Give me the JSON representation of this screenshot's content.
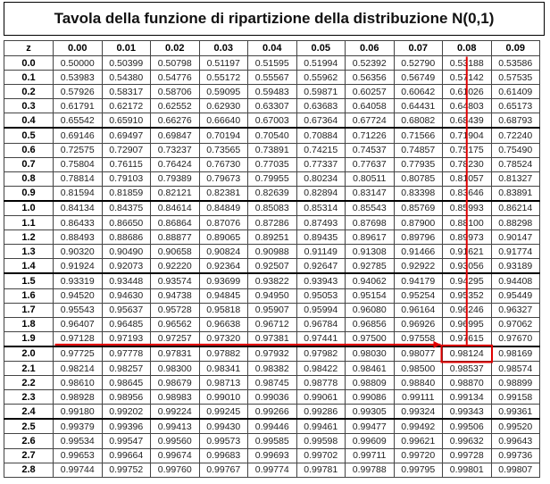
{
  "title": "Tavola della funzione di ripartizione della distribuzione N(0,1)",
  "z_header": "z",
  "columns": [
    "0.00",
    "0.01",
    "0.02",
    "0.03",
    "0.04",
    "0.05",
    "0.06",
    "0.07",
    "0.08",
    "0.09"
  ],
  "rows": [
    {
      "z": "0.0",
      "v": [
        "0.50000",
        "0.50399",
        "0.50798",
        "0.51197",
        "0.51595",
        "0.51994",
        "0.52392",
        "0.52790",
        "0.53188",
        "0.53586"
      ]
    },
    {
      "z": "0.1",
      "v": [
        "0.53983",
        "0.54380",
        "0.54776",
        "0.55172",
        "0.55567",
        "0.55962",
        "0.56356",
        "0.56749",
        "0.57142",
        "0.57535"
      ]
    },
    {
      "z": "0.2",
      "v": [
        "0.57926",
        "0.58317",
        "0.58706",
        "0.59095",
        "0.59483",
        "0.59871",
        "0.60257",
        "0.60642",
        "0.61026",
        "0.61409"
      ]
    },
    {
      "z": "0.3",
      "v": [
        "0.61791",
        "0.62172",
        "0.62552",
        "0.62930",
        "0.63307",
        "0.63683",
        "0.64058",
        "0.64431",
        "0.64803",
        "0.65173"
      ]
    },
    {
      "z": "0.4",
      "v": [
        "0.65542",
        "0.65910",
        "0.66276",
        "0.66640",
        "0.67003",
        "0.67364",
        "0.67724",
        "0.68082",
        "0.68439",
        "0.68793"
      ]
    },
    {
      "z": "0.5",
      "v": [
        "0.69146",
        "0.69497",
        "0.69847",
        "0.70194",
        "0.70540",
        "0.70884",
        "0.71226",
        "0.71566",
        "0.71904",
        "0.72240"
      ]
    },
    {
      "z": "0.6",
      "v": [
        "0.72575",
        "0.72907",
        "0.73237",
        "0.73565",
        "0.73891",
        "0.74215",
        "0.74537",
        "0.74857",
        "0.75175",
        "0.75490"
      ]
    },
    {
      "z": "0.7",
      "v": [
        "0.75804",
        "0.76115",
        "0.76424",
        "0.76730",
        "0.77035",
        "0.77337",
        "0.77637",
        "0.77935",
        "0.78230",
        "0.78524"
      ]
    },
    {
      "z": "0.8",
      "v": [
        "0.78814",
        "0.79103",
        "0.79389",
        "0.79673",
        "0.79955",
        "0.80234",
        "0.80511",
        "0.80785",
        "0.81057",
        "0.81327"
      ]
    },
    {
      "z": "0.9",
      "v": [
        "0.81594",
        "0.81859",
        "0.82121",
        "0.82381",
        "0.82639",
        "0.82894",
        "0.83147",
        "0.83398",
        "0.83646",
        "0.83891"
      ]
    },
    {
      "z": "1.0",
      "v": [
        "0.84134",
        "0.84375",
        "0.84614",
        "0.84849",
        "0.85083",
        "0.85314",
        "0.85543",
        "0.85769",
        "0.85993",
        "0.86214"
      ]
    },
    {
      "z": "1.1",
      "v": [
        "0.86433",
        "0.86650",
        "0.86864",
        "0.87076",
        "0.87286",
        "0.87493",
        "0.87698",
        "0.87900",
        "0.88100",
        "0.88298"
      ]
    },
    {
      "z": "1.2",
      "v": [
        "0.88493",
        "0.88686",
        "0.88877",
        "0.89065",
        "0.89251",
        "0.89435",
        "0.89617",
        "0.89796",
        "0.89973",
        "0.90147"
      ]
    },
    {
      "z": "1.3",
      "v": [
        "0.90320",
        "0.90490",
        "0.90658",
        "0.90824",
        "0.90988",
        "0.91149",
        "0.91308",
        "0.91466",
        "0.91621",
        "0.91774"
      ]
    },
    {
      "z": "1.4",
      "v": [
        "0.91924",
        "0.92073",
        "0.92220",
        "0.92364",
        "0.92507",
        "0.92647",
        "0.92785",
        "0.92922",
        "0.93056",
        "0.93189"
      ]
    },
    {
      "z": "1.5",
      "v": [
        "0.93319",
        "0.93448",
        "0.93574",
        "0.93699",
        "0.93822",
        "0.93943",
        "0.94062",
        "0.94179",
        "0.94295",
        "0.94408"
      ]
    },
    {
      "z": "1.6",
      "v": [
        "0.94520",
        "0.94630",
        "0.94738",
        "0.94845",
        "0.94950",
        "0.95053",
        "0.95154",
        "0.95254",
        "0.95352",
        "0.95449"
      ]
    },
    {
      "z": "1.7",
      "v": [
        "0.95543",
        "0.95637",
        "0.95728",
        "0.95818",
        "0.95907",
        "0.95994",
        "0.96080",
        "0.96164",
        "0.96246",
        "0.96327"
      ]
    },
    {
      "z": "1.8",
      "v": [
        "0.96407",
        "0.96485",
        "0.96562",
        "0.96638",
        "0.96712",
        "0.96784",
        "0.96856",
        "0.96926",
        "0.96995",
        "0.97062"
      ]
    },
    {
      "z": "1.9",
      "v": [
        "0.97128",
        "0.97193",
        "0.97257",
        "0.97320",
        "0.97381",
        "0.97441",
        "0.97500",
        "0.97558",
        "0.97615",
        "0.97670"
      ]
    },
    {
      "z": "2.0",
      "v": [
        "0.97725",
        "0.97778",
        "0.97831",
        "0.97882",
        "0.97932",
        "0.97982",
        "0.98030",
        "0.98077",
        "0.98124",
        "0.98169"
      ]
    },
    {
      "z": "2.1",
      "v": [
        "0.98214",
        "0.98257",
        "0.98300",
        "0.98341",
        "0.98382",
        "0.98422",
        "0.98461",
        "0.98500",
        "0.98537",
        "0.98574"
      ]
    },
    {
      "z": "2.2",
      "v": [
        "0.98610",
        "0.98645",
        "0.98679",
        "0.98713",
        "0.98745",
        "0.98778",
        "0.98809",
        "0.98840",
        "0.98870",
        "0.98899"
      ]
    },
    {
      "z": "2.3",
      "v": [
        "0.98928",
        "0.98956",
        "0.98983",
        "0.99010",
        "0.99036",
        "0.99061",
        "0.99086",
        "0.99111",
        "0.99134",
        "0.99158"
      ]
    },
    {
      "z": "2.4",
      "v": [
        "0.99180",
        "0.99202",
        "0.99224",
        "0.99245",
        "0.99266",
        "0.99286",
        "0.99305",
        "0.99324",
        "0.99343",
        "0.99361"
      ]
    },
    {
      "z": "2.5",
      "v": [
        "0.99379",
        "0.99396",
        "0.99413",
        "0.99430",
        "0.99446",
        "0.99461",
        "0.99477",
        "0.99492",
        "0.99506",
        "0.99520"
      ]
    },
    {
      "z": "2.6",
      "v": [
        "0.99534",
        "0.99547",
        "0.99560",
        "0.99573",
        "0.99585",
        "0.99598",
        "0.99609",
        "0.99621",
        "0.99632",
        "0.99643"
      ]
    },
    {
      "z": "2.7",
      "v": [
        "0.99653",
        "0.99664",
        "0.99674",
        "0.99683",
        "0.99693",
        "0.99702",
        "0.99711",
        "0.99720",
        "0.99728",
        "0.99736"
      ]
    },
    {
      "z": "2.8",
      "v": [
        "0.99744",
        "0.99752",
        "0.99760",
        "0.99767",
        "0.99774",
        "0.99781",
        "0.99788",
        "0.99795",
        "0.99801",
        "0.99807"
      ]
    }
  ],
  "highlight": {
    "row_z": "2.0",
    "col": "0.08",
    "value": "0.98124",
    "color": "#e00000"
  }
}
